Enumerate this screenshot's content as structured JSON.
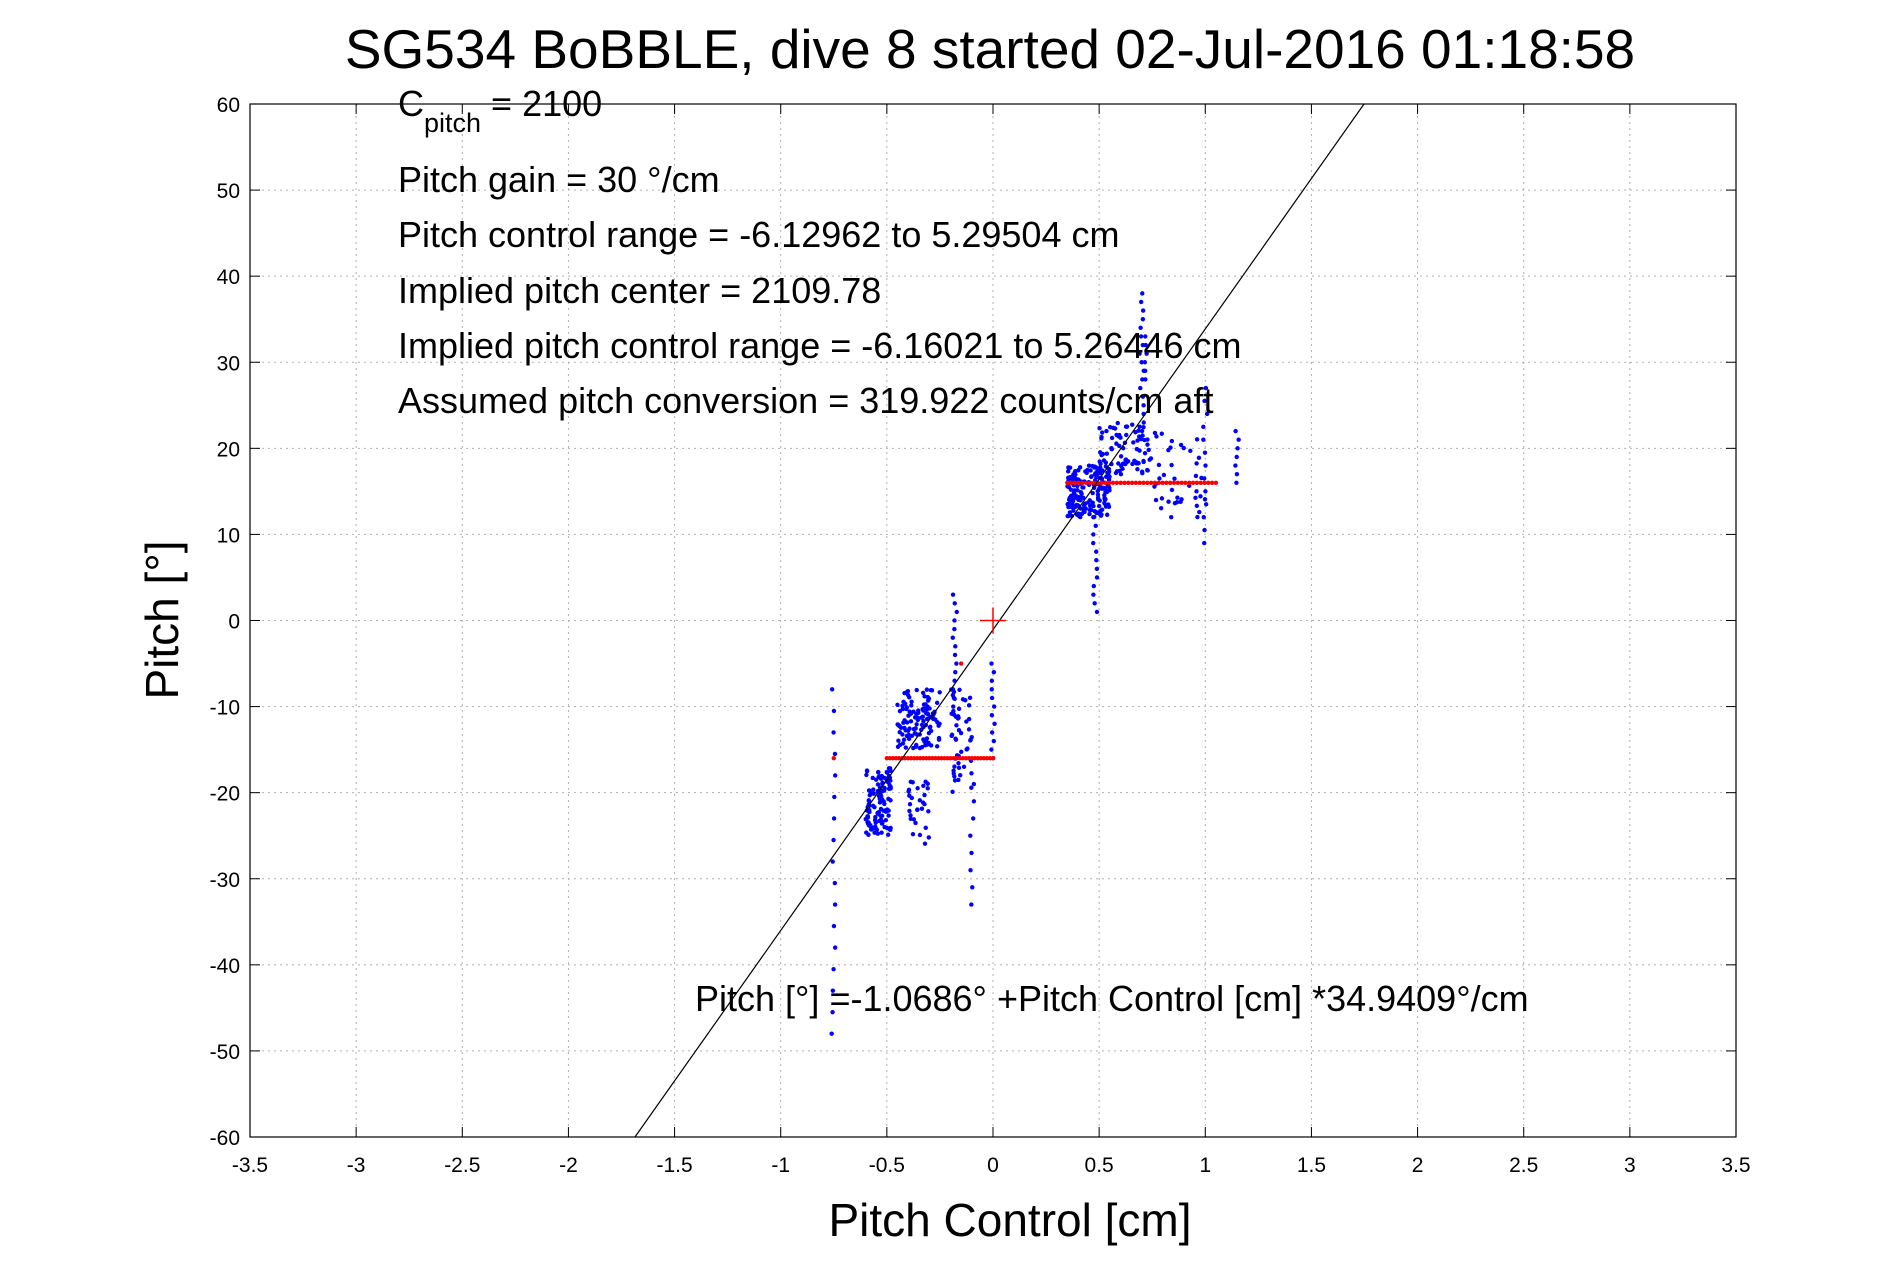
{
  "chart_data": {
    "type": "scatter",
    "title": "SG534 BoBBLE, dive 8 started 02-Jul-2016 01:18:58",
    "xlabel": "Pitch Control [cm]",
    "ylabel": "Pitch [°]",
    "xlim": [
      -3.5,
      3.5
    ],
    "ylim": [
      -60,
      60
    ],
    "xticks": [
      -3.5,
      -3,
      -2.5,
      -2,
      -1.5,
      -1,
      -0.5,
      0,
      0.5,
      1,
      1.5,
      2,
      2.5,
      3,
      3.5
    ],
    "xtick_labels": [
      "-3.5",
      "-3",
      "-2.5",
      "-2",
      "-1.5",
      "-1",
      "-0.5",
      "0",
      "0.5",
      "1",
      "1.5",
      "2",
      "2.5",
      "3",
      "3.5"
    ],
    "yticks": [
      60,
      50,
      40,
      30,
      20,
      10,
      0,
      -10,
      -20,
      -30,
      -40,
      -50,
      -60
    ],
    "ytick_labels": [
      "60",
      "50",
      "40",
      "30",
      "20",
      "10",
      "0",
      "-10",
      "-20",
      "-30",
      "-40",
      "-50",
      "-60"
    ],
    "grid": true,
    "legend": "none",
    "annotations": {
      "c_pitch_symbol": "C",
      "c_pitch_subscript": "pitch",
      "c_pitch_value": " = 2100",
      "pitch_gain": "Pitch gain = 30 °/cm",
      "control_range": "Pitch control range = -6.12962 to 5.29504 cm",
      "implied_center": "Implied pitch center = 2109.78",
      "implied_range": "Implied pitch control range = -6.16021 to 5.26446 cm",
      "conversion": "Assumed pitch conversion = 319.922 counts/cm aft",
      "fit_equation": "Pitch [°] =-1.0686° +Pitch Control [cm] *34.9409°/cm"
    },
    "fit_line": {
      "intercept": -1.0686,
      "slope": 34.9409,
      "color": "#000000"
    },
    "center_marker": {
      "x": 0,
      "y": 0,
      "color": "#ff0000"
    },
    "series": [
      {
        "color": "#0000ff",
        "clusters": [
          {
            "x": [
              -0.6,
              -0.48
            ],
            "y": [
              -25,
              -17
            ],
            "n": 120
          },
          {
            "x": [
              -0.45,
              -0.25
            ],
            "y": [
              -15,
              -8
            ],
            "n": 120
          },
          {
            "x": [
              -0.4,
              -0.3
            ],
            "y": [
              -26,
              -18
            ],
            "n": 30
          },
          {
            "x": [
              -0.2,
              -0.1
            ],
            "y": [
              -20,
              -8
            ],
            "n": 50
          },
          {
            "x": [
              0.35,
              0.55
            ],
            "y": [
              12,
              18
            ],
            "n": 180
          },
          {
            "x": [
              0.5,
              0.75
            ],
            "y": [
              17,
              23
            ],
            "n": 80
          },
          {
            "x": [
              0.75,
              1.0
            ],
            "y": [
              12,
              22
            ],
            "n": 40
          }
        ],
        "columns": [
          {
            "x": -0.75,
            "y": [
              -48,
              -8
            ],
            "step": 2.5
          },
          {
            "x": -0.18,
            "y": [
              -10,
              3
            ],
            "step": 1
          },
          {
            "x": -0.1,
            "y": [
              -33,
              -18
            ],
            "step": 2
          },
          {
            "x": 0.0,
            "y": [
              -16,
              -5
            ],
            "step": 1
          },
          {
            "x": 0.48,
            "y": [
              1,
              12
            ],
            "step": 1
          },
          {
            "x": 0.7,
            "y": [
              22,
              38
            ],
            "step": 1
          },
          {
            "x": 0.72,
            "y": [
              28,
              33
            ],
            "step": 1
          },
          {
            "x": 1.0,
            "y": [
              9,
              28
            ],
            "step": 1.5
          },
          {
            "x": 1.15,
            "y": [
              16,
              22
            ],
            "step": 1
          }
        ]
      },
      {
        "color": "#ff0000",
        "points": [
          {
            "x": [
              -0.5,
              0.0
            ],
            "y": -16,
            "n": 36
          },
          {
            "x": [
              0.35,
              1.05
            ],
            "y": 16,
            "n": 40
          },
          {
            "x": -0.75,
            "y": -16
          },
          {
            "x": -0.15,
            "y": -5
          }
        ]
      }
    ]
  }
}
